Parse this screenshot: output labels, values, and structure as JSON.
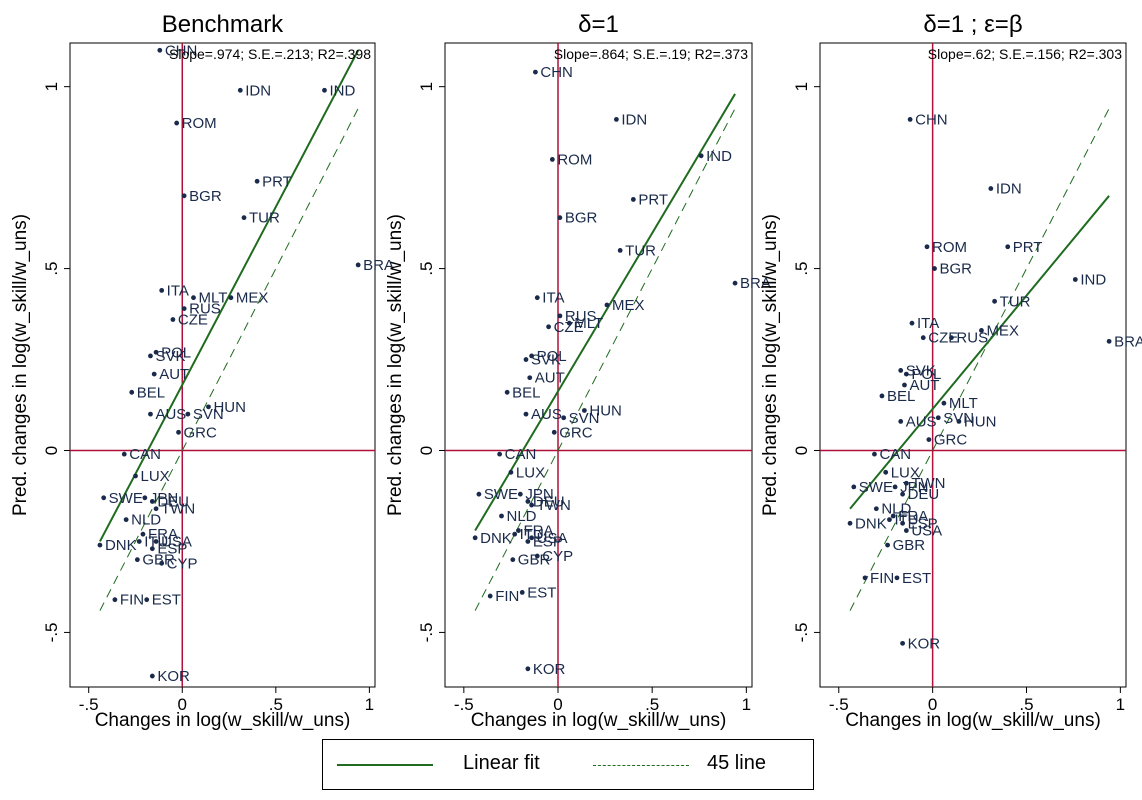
{
  "chart_data": [
    {
      "type": "scatter",
      "title": "Benchmark",
      "annotation": "Slope=.974; S.E.=.213; R2=.398",
      "xlabel": "Changes in log(w_skill/w_uns)",
      "ylabel": "Pred. changes in log(w_skill/w_uns)",
      "xticks": [
        "-.5",
        "0",
        ".5",
        "1"
      ],
      "yticks": [
        "-.5",
        "0",
        ".5",
        "1"
      ],
      "xlim": [
        -0.6,
        1.03
      ],
      "ylim": [
        -0.65,
        1.12
      ],
      "fit": {
        "x": [
          -0.44,
          0.94
        ],
        "y": [
          -0.25,
          1.1
        ]
      },
      "line45": {
        "x": [
          -0.44,
          0.94
        ],
        "y": [
          -0.44,
          0.94
        ]
      },
      "points": [
        {
          "label": "CHN",
          "x": -0.12,
          "y": 1.1
        },
        {
          "label": "IDN",
          "x": 0.31,
          "y": 0.99
        },
        {
          "label": "IND",
          "x": 0.76,
          "y": 0.99
        },
        {
          "label": "ROM",
          "x": -0.03,
          "y": 0.9
        },
        {
          "label": "PRT",
          "x": 0.4,
          "y": 0.74
        },
        {
          "label": "BGR",
          "x": 0.01,
          "y": 0.7
        },
        {
          "label": "TUR",
          "x": 0.33,
          "y": 0.64
        },
        {
          "label": "BRA",
          "x": 0.94,
          "y": 0.51
        },
        {
          "label": "ITA",
          "x": -0.11,
          "y": 0.44
        },
        {
          "label": "MLT",
          "x": 0.06,
          "y": 0.42
        },
        {
          "label": "MEX",
          "x": 0.26,
          "y": 0.42
        },
        {
          "label": "RUS",
          "x": 0.01,
          "y": 0.39
        },
        {
          "label": "CZE",
          "x": -0.05,
          "y": 0.36
        },
        {
          "label": "POL",
          "x": -0.14,
          "y": 0.27
        },
        {
          "label": "SVK",
          "x": -0.17,
          "y": 0.26
        },
        {
          "label": "AUT",
          "x": -0.15,
          "y": 0.21
        },
        {
          "label": "BEL",
          "x": -0.27,
          "y": 0.16
        },
        {
          "label": "AUS",
          "x": -0.17,
          "y": 0.1
        },
        {
          "label": "HUN",
          "x": 0.14,
          "y": 0.12
        },
        {
          "label": "SVN",
          "x": 0.03,
          "y": 0.1
        },
        {
          "label": "GRC",
          "x": -0.02,
          "y": 0.05
        },
        {
          "label": "CAN",
          "x": -0.31,
          "y": -0.01
        },
        {
          "label": "LUX",
          "x": -0.25,
          "y": -0.07
        },
        {
          "label": "SWE",
          "x": -0.42,
          "y": -0.13
        },
        {
          "label": "JPN",
          "x": -0.2,
          "y": -0.13
        },
        {
          "label": "DEU",
          "x": -0.16,
          "y": -0.14
        },
        {
          "label": "TWN",
          "x": -0.14,
          "y": -0.16
        },
        {
          "label": "NLD",
          "x": -0.3,
          "y": -0.19
        },
        {
          "label": "FRA",
          "x": -0.21,
          "y": -0.23
        },
        {
          "label": "ITU",
          "x": -0.23,
          "y": -0.25
        },
        {
          "label": "USA",
          "x": -0.14,
          "y": -0.25
        },
        {
          "label": "DNK",
          "x": -0.44,
          "y": -0.26
        },
        {
          "label": "ESP",
          "x": -0.16,
          "y": -0.27
        },
        {
          "label": "GBR",
          "x": -0.24,
          "y": -0.3
        },
        {
          "label": "CYP",
          "x": -0.11,
          "y": -0.31
        },
        {
          "label": "FIN",
          "x": -0.36,
          "y": -0.41
        },
        {
          "label": "EST",
          "x": -0.19,
          "y": -0.41
        },
        {
          "label": "KOR",
          "x": -0.16,
          "y": -0.62
        }
      ]
    },
    {
      "type": "scatter",
      "title": "δ=1",
      "annotation": "Slope=.864; S.E.=.19; R2=.373",
      "xlabel": "Changes in log(w_skill/w_uns)",
      "ylabel": "Pred. changes in log(w_skill/w_uns)",
      "xticks": [
        "-.5",
        "0",
        ".5",
        "1"
      ],
      "yticks": [
        "-.5",
        "0",
        ".5",
        "1"
      ],
      "xlim": [
        -0.6,
        1.03
      ],
      "ylim": [
        -0.65,
        1.12
      ],
      "fit": {
        "x": [
          -0.44,
          0.94
        ],
        "y": [
          -0.22,
          0.98
        ]
      },
      "line45": {
        "x": [
          -0.44,
          0.94
        ],
        "y": [
          -0.44,
          0.94
        ]
      },
      "points": [
        {
          "label": "CHN",
          "x": -0.12,
          "y": 1.04
        },
        {
          "label": "IDN",
          "x": 0.31,
          "y": 0.91
        },
        {
          "label": "IND",
          "x": 0.76,
          "y": 0.81
        },
        {
          "label": "ROM",
          "x": -0.03,
          "y": 0.8
        },
        {
          "label": "PRT",
          "x": 0.4,
          "y": 0.69
        },
        {
          "label": "BGR",
          "x": 0.01,
          "y": 0.64
        },
        {
          "label": "TUR",
          "x": 0.33,
          "y": 0.55
        },
        {
          "label": "BRA",
          "x": 0.94,
          "y": 0.46
        },
        {
          "label": "ITA",
          "x": -0.11,
          "y": 0.42
        },
        {
          "label": "MEX",
          "x": 0.26,
          "y": 0.4
        },
        {
          "label": "RUS",
          "x": 0.01,
          "y": 0.37
        },
        {
          "label": "MLT",
          "x": 0.06,
          "y": 0.35
        },
        {
          "label": "CZE",
          "x": -0.05,
          "y": 0.34
        },
        {
          "label": "POL",
          "x": -0.14,
          "y": 0.26
        },
        {
          "label": "SVK",
          "x": -0.17,
          "y": 0.25
        },
        {
          "label": "AUT",
          "x": -0.15,
          "y": 0.2
        },
        {
          "label": "BEL",
          "x": -0.27,
          "y": 0.16
        },
        {
          "label": "AUS",
          "x": -0.17,
          "y": 0.1
        },
        {
          "label": "HUN",
          "x": 0.14,
          "y": 0.11
        },
        {
          "label": "SVN",
          "x": 0.03,
          "y": 0.09
        },
        {
          "label": "GRC",
          "x": -0.02,
          "y": 0.05
        },
        {
          "label": "CAN",
          "x": -0.31,
          "y": -0.01
        },
        {
          "label": "LUX",
          "x": -0.25,
          "y": -0.06
        },
        {
          "label": "SWE",
          "x": -0.42,
          "y": -0.12
        },
        {
          "label": "JPN",
          "x": -0.2,
          "y": -0.12
        },
        {
          "label": "DEU",
          "x": -0.16,
          "y": -0.14
        },
        {
          "label": "TWN",
          "x": -0.14,
          "y": -0.15
        },
        {
          "label": "NLD",
          "x": -0.3,
          "y": -0.18
        },
        {
          "label": "FRA",
          "x": -0.21,
          "y": -0.22
        },
        {
          "label": "ITU",
          "x": -0.23,
          "y": -0.23
        },
        {
          "label": "USA",
          "x": -0.14,
          "y": -0.24
        },
        {
          "label": "DNK",
          "x": -0.44,
          "y": -0.24
        },
        {
          "label": "ESP",
          "x": -0.16,
          "y": -0.25
        },
        {
          "label": "GBR",
          "x": -0.24,
          "y": -0.3
        },
        {
          "label": "CYP",
          "x": -0.11,
          "y": -0.29
        },
        {
          "label": "FIN",
          "x": -0.36,
          "y": -0.4
        },
        {
          "label": "EST",
          "x": -0.19,
          "y": -0.39
        },
        {
          "label": "KOR",
          "x": -0.16,
          "y": -0.6
        }
      ]
    },
    {
      "type": "scatter",
      "title": "δ=1 ; ε=β",
      "annotation": "Slope=.62; S.E.=.156; R2=.303",
      "xlabel": "Changes in log(w_skill/w_uns)",
      "ylabel": "Pred. changes in log(w_skill/w_uns)",
      "xticks": [
        "-.5",
        "0",
        ".5",
        "1"
      ],
      "yticks": [
        "-.5",
        "0",
        ".5",
        "1"
      ],
      "xlim": [
        -0.6,
        1.03
      ],
      "ylim": [
        -0.65,
        1.12
      ],
      "fit": {
        "x": [
          -0.44,
          0.94
        ],
        "y": [
          -0.16,
          0.7
        ]
      },
      "line45": {
        "x": [
          -0.44,
          0.94
        ],
        "y": [
          -0.44,
          0.94
        ]
      },
      "points": [
        {
          "label": "CHN",
          "x": -0.12,
          "y": 0.91
        },
        {
          "label": "IDN",
          "x": 0.31,
          "y": 0.72
        },
        {
          "label": "ROM",
          "x": -0.03,
          "y": 0.56
        },
        {
          "label": "PRT",
          "x": 0.4,
          "y": 0.56
        },
        {
          "label": "BGR",
          "x": 0.01,
          "y": 0.5
        },
        {
          "label": "IND",
          "x": 0.76,
          "y": 0.47
        },
        {
          "label": "TUR",
          "x": 0.33,
          "y": 0.41
        },
        {
          "label": "ITA",
          "x": -0.11,
          "y": 0.35
        },
        {
          "label": "MEX",
          "x": 0.26,
          "y": 0.33
        },
        {
          "label": "RUS",
          "x": 0.1,
          "y": 0.31
        },
        {
          "label": "CZE",
          "x": -0.05,
          "y": 0.31
        },
        {
          "label": "BRA",
          "x": 0.94,
          "y": 0.3
        },
        {
          "label": "SVK",
          "x": -0.17,
          "y": 0.22
        },
        {
          "label": "POL",
          "x": -0.14,
          "y": 0.21
        },
        {
          "label": "AUT",
          "x": -0.15,
          "y": 0.18
        },
        {
          "label": "BEL",
          "x": -0.27,
          "y": 0.15
        },
        {
          "label": "MLT",
          "x": 0.06,
          "y": 0.13
        },
        {
          "label": "AUS",
          "x": -0.17,
          "y": 0.08
        },
        {
          "label": "SVN",
          "x": 0.03,
          "y": 0.09
        },
        {
          "label": "HUN",
          "x": 0.14,
          "y": 0.08
        },
        {
          "label": "GRC",
          "x": -0.02,
          "y": 0.03
        },
        {
          "label": "CAN",
          "x": -0.31,
          "y": -0.01
        },
        {
          "label": "LUX",
          "x": -0.25,
          "y": -0.06
        },
        {
          "label": "TWN",
          "x": -0.14,
          "y": -0.09
        },
        {
          "label": "SWE",
          "x": -0.42,
          "y": -0.1
        },
        {
          "label": "JPN",
          "x": -0.2,
          "y": -0.1
        },
        {
          "label": "DEU",
          "x": -0.16,
          "y": -0.12
        },
        {
          "label": "NLD",
          "x": -0.3,
          "y": -0.16
        },
        {
          "label": "FRA",
          "x": -0.21,
          "y": -0.18
        },
        {
          "label": "ITU",
          "x": -0.23,
          "y": -0.19
        },
        {
          "label": "ESP",
          "x": -0.16,
          "y": -0.2
        },
        {
          "label": "USA",
          "x": -0.14,
          "y": -0.22
        },
        {
          "label": "DNK",
          "x": -0.44,
          "y": -0.2
        },
        {
          "label": "GBR",
          "x": -0.24,
          "y": -0.26
        },
        {
          "label": "FIN",
          "x": -0.36,
          "y": -0.35
        },
        {
          "label": "EST",
          "x": -0.19,
          "y": -0.35
        },
        {
          "label": "KOR",
          "x": -0.16,
          "y": -0.53
        }
      ]
    }
  ],
  "legend": {
    "fit_label": "Linear fit",
    "line45_label": "45 line"
  },
  "colors": {
    "fit": "#1f6b1f",
    "line45": "#1f6b1f",
    "ref_lines": "#b0103a",
    "points": "#1a2a4a",
    "point_labels": "#1a2a4a"
  }
}
